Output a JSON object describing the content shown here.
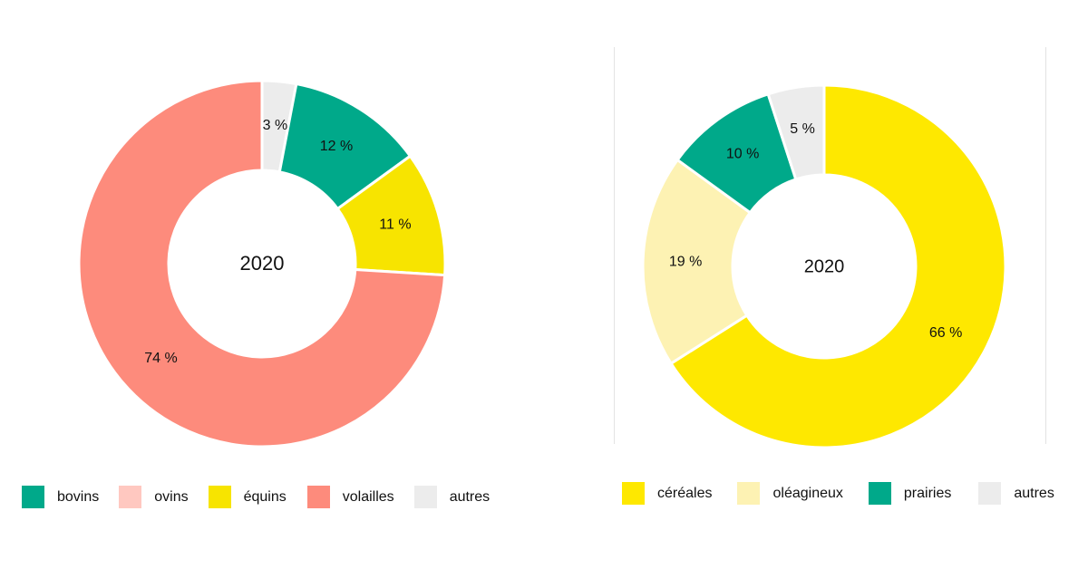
{
  "chart_data": [
    {
      "type": "pie",
      "center_label": "2020",
      "categories": [
        "bovins",
        "ovins",
        "équins",
        "volailles",
        "autres"
      ],
      "legend_colors": [
        "#00a98a",
        "#ffc8c0",
        "#f7e400",
        "#fd8b7c",
        "#ececec"
      ],
      "slices": [
        {
          "name": "autres",
          "value": 3,
          "label": "3 %",
          "color": "#ececec"
        },
        {
          "name": "bovins",
          "value": 12,
          "label": "12 %",
          "color": "#00a98a"
        },
        {
          "name": "équins",
          "value": 11,
          "label": "11 %",
          "color": "#f7e400"
        },
        {
          "name": "volailles",
          "value": 74,
          "label": "74 %",
          "color": "#fd8b7c"
        }
      ],
      "legend_placement": "bottom"
    },
    {
      "type": "pie",
      "center_label": "2020",
      "categories": [
        "céréales",
        "oléagineux",
        "prairies",
        "autres"
      ],
      "legend_colors": [
        "#fee800",
        "#fdf2b3",
        "#00a98a",
        "#ececec"
      ],
      "slices": [
        {
          "name": "céréales",
          "value": 66,
          "label": "66 %",
          "color": "#fee800"
        },
        {
          "name": "oléagineux",
          "value": 19,
          "label": "19 %",
          "color": "#fdf2b3"
        },
        {
          "name": "prairies",
          "value": 10,
          "label": "10 %",
          "color": "#00a98a"
        },
        {
          "name": "autres",
          "value": 5,
          "label": "5 %",
          "color": "#ececec"
        }
      ],
      "legend_placement": "bottom"
    }
  ]
}
